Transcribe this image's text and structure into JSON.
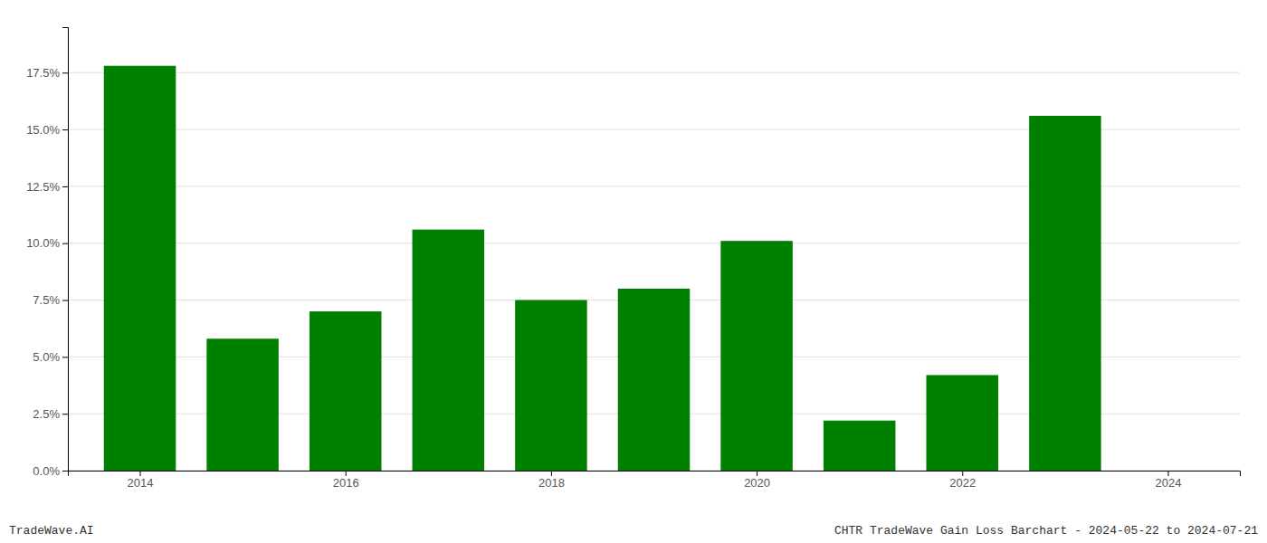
{
  "chart_data": {
    "type": "bar",
    "title": "CHTR TradeWave Gain Loss Barchart - 2024-05-22 to 2024-07-21",
    "annotations": [
      "TradeWave.AI"
    ],
    "x": [
      2014,
      2015,
      2016,
      2017,
      2018,
      2019,
      2020,
      2021,
      2022,
      2023
    ],
    "values": [
      0.178,
      0.058,
      0.07,
      0.106,
      0.075,
      0.08,
      0.101,
      0.022,
      0.042,
      0.156
    ],
    "color": "#008000",
    "xlim": [
      2013.3,
      2024.7
    ],
    "xticks": [
      2014,
      2016,
      2018,
      2020,
      2022,
      2024
    ],
    "ylim": [
      0,
      0.195
    ],
    "yticks": [
      {
        "value": 0.0,
        "label": "0.0%"
      },
      {
        "value": 0.025,
        "label": "2.5%"
      },
      {
        "value": 0.05,
        "label": "5.0%"
      },
      {
        "value": 0.075,
        "label": "7.5%"
      },
      {
        "value": 0.1,
        "label": "10.0%"
      },
      {
        "value": 0.125,
        "label": "12.5%"
      },
      {
        "value": 0.15,
        "label": "15.0%"
      },
      {
        "value": 0.175,
        "label": "17.5%"
      }
    ],
    "grid": true
  }
}
